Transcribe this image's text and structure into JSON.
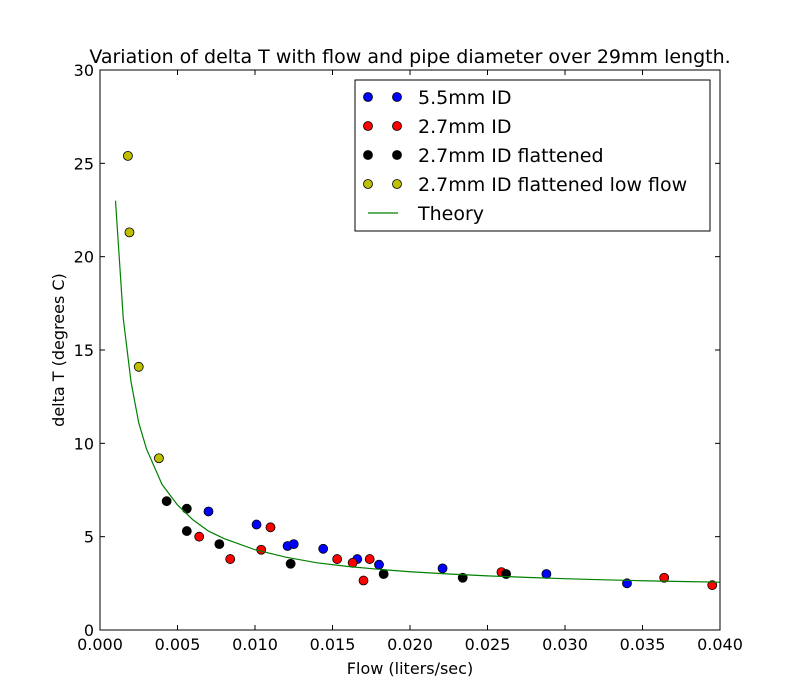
{
  "chart_data": {
    "type": "scatter",
    "title": "Variation of delta T with flow and pipe diameter over 29mm length.",
    "xlabel": "Flow (liters/sec)",
    "ylabel": "delta T (degrees C)",
    "xlim": [
      0.0,
      0.04
    ],
    "ylim": [
      0,
      30
    ],
    "xticks": [
      "0.000",
      "0.005",
      "0.010",
      "0.015",
      "0.020",
      "0.025",
      "0.030",
      "0.035",
      "0.040"
    ],
    "yticks": [
      "0",
      "5",
      "10",
      "15",
      "20",
      "25",
      "30"
    ],
    "grid": false,
    "legend_position": "top-right",
    "series": [
      {
        "name": "5.5mm ID",
        "kind": "markers",
        "color": "#0000ff",
        "points": [
          [
            0.007,
            6.35
          ],
          [
            0.0101,
            5.65
          ],
          [
            0.0121,
            4.5
          ],
          [
            0.0125,
            4.6
          ],
          [
            0.0144,
            4.35
          ],
          [
            0.0166,
            3.8
          ],
          [
            0.018,
            3.5
          ],
          [
            0.0221,
            3.3
          ],
          [
            0.0288,
            3.0
          ],
          [
            0.034,
            2.5
          ]
        ]
      },
      {
        "name": "2.7mm ID",
        "kind": "markers",
        "color": "#ff0000",
        "points": [
          [
            0.0064,
            5.0
          ],
          [
            0.0084,
            3.8
          ],
          [
            0.0104,
            4.3
          ],
          [
            0.011,
            5.5
          ],
          [
            0.0153,
            3.8
          ],
          [
            0.0163,
            3.6
          ],
          [
            0.017,
            2.65
          ],
          [
            0.0174,
            3.8
          ],
          [
            0.0259,
            3.1
          ],
          [
            0.0364,
            2.8
          ],
          [
            0.0395,
            2.4
          ]
        ]
      },
      {
        "name": "2.7mm ID flattened",
        "kind": "markers",
        "color": "#000000",
        "points": [
          [
            0.0043,
            6.9
          ],
          [
            0.0056,
            5.3
          ],
          [
            0.0056,
            6.5
          ],
          [
            0.0077,
            4.6
          ],
          [
            0.0123,
            3.55
          ],
          [
            0.0183,
            3.0
          ],
          [
            0.0234,
            2.8
          ],
          [
            0.0262,
            3.0
          ]
        ]
      },
      {
        "name": "2.7mm ID flattened low flow",
        "kind": "markers",
        "color": "#bfbf00",
        "points": [
          [
            0.0018,
            25.4
          ],
          [
            0.0019,
            21.3
          ],
          [
            0.0025,
            14.1
          ],
          [
            0.0038,
            9.2
          ]
        ]
      },
      {
        "name": "Theory",
        "kind": "line",
        "color": "#008000",
        "points": [
          [
            0.001,
            23.0
          ],
          [
            0.0015,
            16.7
          ],
          [
            0.002,
            13.3
          ],
          [
            0.0025,
            11.1
          ],
          [
            0.003,
            9.7
          ],
          [
            0.004,
            7.8
          ],
          [
            0.005,
            6.7
          ],
          [
            0.006,
            5.9
          ],
          [
            0.007,
            5.3
          ],
          [
            0.008,
            4.9
          ],
          [
            0.01,
            4.3
          ],
          [
            0.012,
            3.9
          ],
          [
            0.014,
            3.6
          ],
          [
            0.016,
            3.4
          ],
          [
            0.018,
            3.25
          ],
          [
            0.02,
            3.12
          ],
          [
            0.0225,
            3.0
          ],
          [
            0.025,
            2.9
          ],
          [
            0.0275,
            2.82
          ],
          [
            0.03,
            2.75
          ],
          [
            0.0325,
            2.69
          ],
          [
            0.035,
            2.64
          ],
          [
            0.0375,
            2.6
          ],
          [
            0.04,
            2.56
          ]
        ]
      }
    ]
  }
}
